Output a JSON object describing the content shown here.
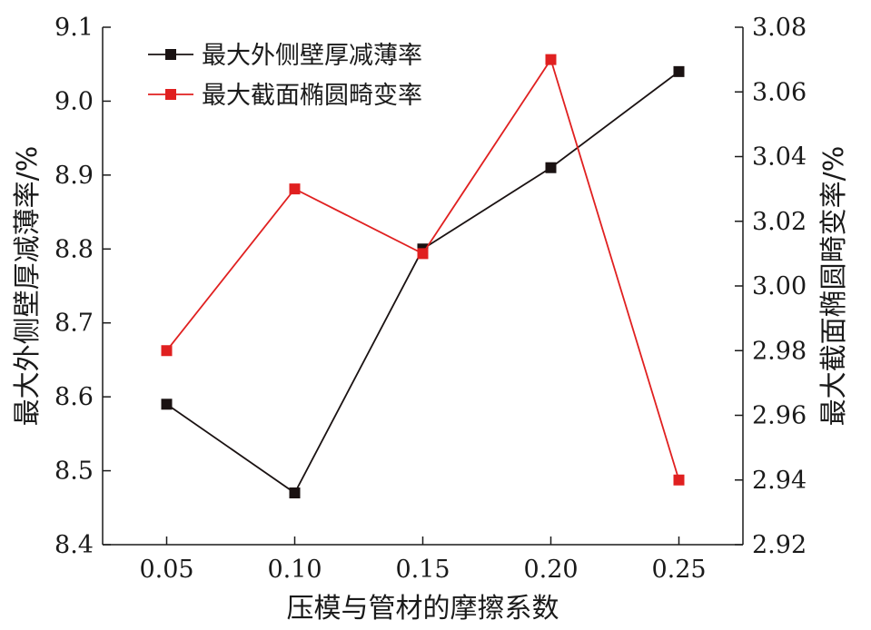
{
  "chart_data": {
    "type": "line",
    "xlabel": "压模与管材的摩擦系数",
    "ylabel_left": "最大外侧壁厚减薄率/%",
    "ylabel_right": "最大截面椭圆畸变率/%",
    "x": [
      0.05,
      0.1,
      0.15,
      0.2,
      0.25
    ],
    "x_tick_labels": [
      "0.05",
      "0.10",
      "0.15",
      "0.20",
      "0.25"
    ],
    "xlim": [
      0.025,
      0.275
    ],
    "y_left_lim": [
      8.4,
      9.1
    ],
    "y_left_ticks": [
      "8.4",
      "8.5",
      "8.6",
      "8.7",
      "8.8",
      "8.9",
      "9.0",
      "9.1"
    ],
    "y_right_lim": [
      2.92,
      3.08
    ],
    "y_right_ticks": [
      "2.92",
      "2.94",
      "2.96",
      "2.98",
      "3.00",
      "3.02",
      "3.04",
      "3.06",
      "3.08"
    ],
    "grid": false,
    "legend_position": "top-left",
    "series": [
      {
        "name": "最大外侧壁厚减薄率",
        "axis": "left",
        "color": "#1a1212",
        "values": [
          8.59,
          8.47,
          8.8,
          8.91,
          9.04
        ]
      },
      {
        "name": "最大截面椭圆畸变率",
        "axis": "right",
        "color": "#e02020",
        "values": [
          2.98,
          3.03,
          3.01,
          3.07,
          2.94
        ]
      }
    ]
  }
}
